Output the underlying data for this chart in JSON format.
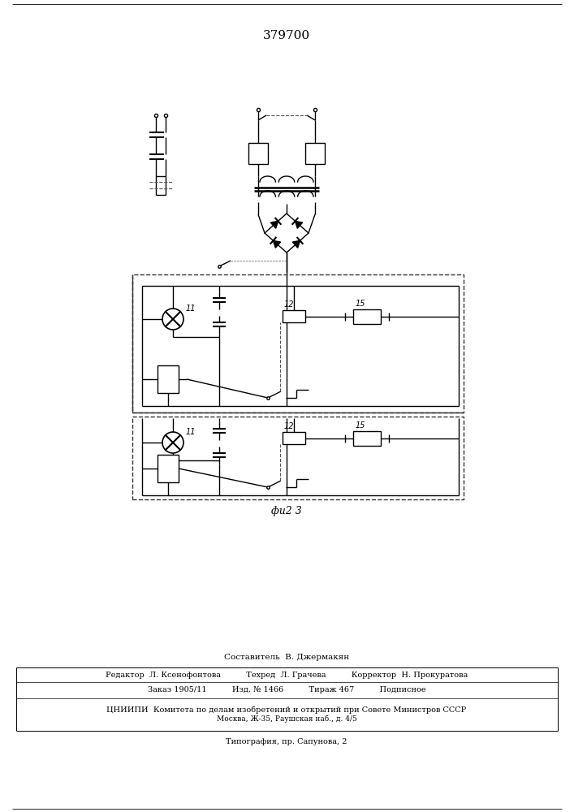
{
  "title": "379700",
  "fig_label": "фu2 3",
  "bg_color": "#ffffff",
  "line_color": "#000000",
  "title_fontsize": 11,
  "footer_lines": [
    "Составитель  В. Джермакян",
    "Редактор  Л. Ксенофонтова          Техред  Л. Грачева          Корректор  Н. Прокуратова",
    "Заказ 1905/11          Изд. № 1466          Тираж 467          Подписное",
    "ЦНИИПИ  Комитета по делам изобретений и открытий при Совете Министров СССР",
    "Москва, Ж-35, Раушская наб., д. 4/5",
    "Типография, пр. Сапунова, 2"
  ]
}
